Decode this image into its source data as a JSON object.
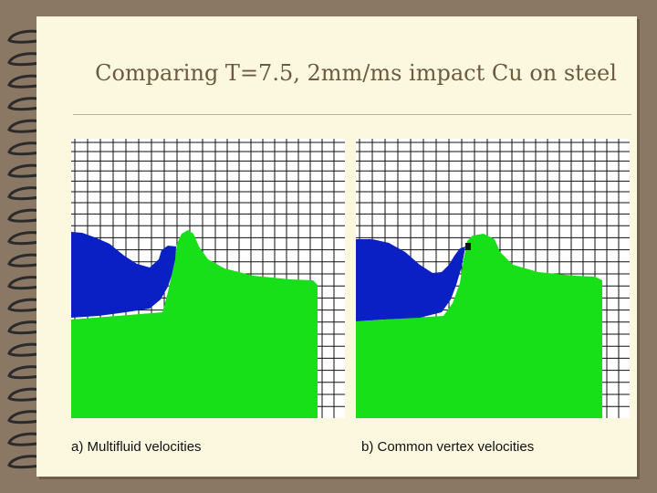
{
  "slide": {
    "title": "Comparing T=7.5, 2mm/ms impact Cu on steel"
  },
  "panels": [
    {
      "caption": "a) Multifluid velocities"
    },
    {
      "caption": "b) Common vertex velocities"
    }
  ],
  "colors": {
    "background": "#8a7865",
    "page": "#fbf8df",
    "title_text": "#6d5a3f",
    "copper_projectile": "#0a1fc4",
    "steel_target": "#18e018",
    "grid_lines": "#111111"
  },
  "icons": {
    "binding": "spiral-binding-icon"
  }
}
